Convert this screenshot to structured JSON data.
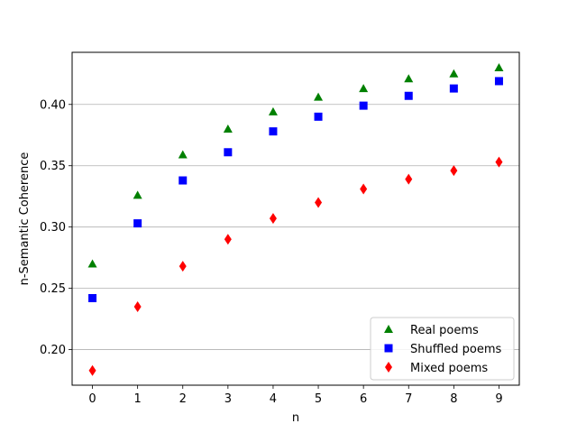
{
  "chart_data": {
    "type": "scatter",
    "title": "",
    "xlabel": "n",
    "ylabel": "n-Semantic Coherence",
    "x": [
      0,
      1,
      2,
      3,
      4,
      5,
      6,
      7,
      8,
      9
    ],
    "xlim": [
      -0.45,
      9.45
    ],
    "ylim": [
      0.171,
      0.4425
    ],
    "xticks": [
      "0",
      "1",
      "2",
      "3",
      "4",
      "5",
      "6",
      "7",
      "8",
      "9"
    ],
    "yticks": [
      "0.20",
      "0.25",
      "0.30",
      "0.35",
      "0.40"
    ],
    "grid": "horizontal",
    "legend_position": "lower-right",
    "series": [
      {
        "name": "Real poems",
        "marker": "triangle",
        "color": "#008000",
        "values": [
          0.27,
          0.326,
          0.359,
          0.38,
          0.394,
          0.406,
          0.413,
          0.421,
          0.425,
          0.43
        ]
      },
      {
        "name": "Shuffled poems",
        "marker": "square",
        "color": "#0000ff",
        "values": [
          0.242,
          0.303,
          0.338,
          0.361,
          0.378,
          0.39,
          0.399,
          0.407,
          0.413,
          0.419
        ]
      },
      {
        "name": "Mixed poems",
        "marker": "diamond",
        "color": "#ff0000",
        "values": [
          0.183,
          0.235,
          0.268,
          0.29,
          0.307,
          0.32,
          0.331,
          0.339,
          0.346,
          0.353
        ]
      }
    ]
  }
}
